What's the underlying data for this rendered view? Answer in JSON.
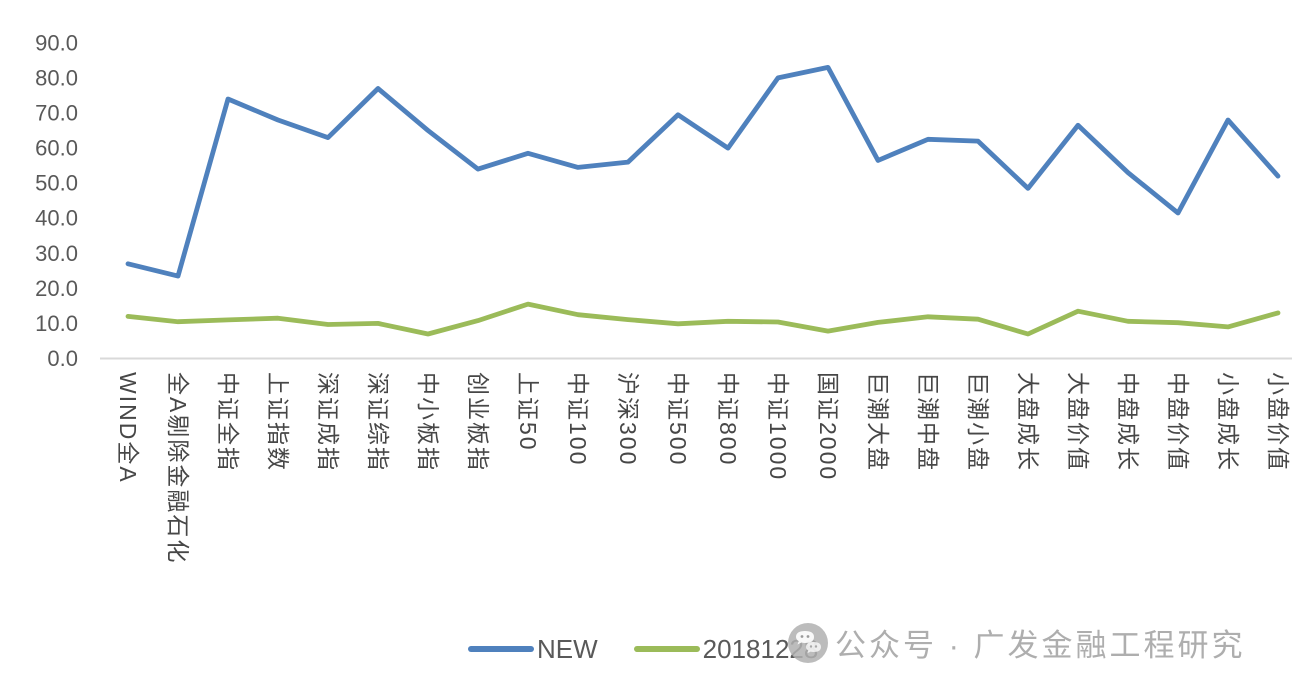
{
  "chart_data": {
    "type": "line",
    "title": "",
    "xlabel": "",
    "ylabel": "",
    "ylim": [
      0,
      90
    ],
    "grid": false,
    "legend_position": "bottom",
    "y_ticks": [
      "0.0",
      "10.0",
      "20.0",
      "30.0",
      "40.0",
      "50.0",
      "60.0",
      "70.0",
      "80.0",
      "90.0"
    ],
    "categories": [
      "WIND全A",
      "全A剔除金融石化",
      "中证全指",
      "上证指数",
      "深证成指",
      "深证综指",
      "中小板指",
      "创业板指",
      "上证50",
      "中证100",
      "沪深300",
      "中证500",
      "中证800",
      "中证1000",
      "国证2000",
      "巨潮大盘",
      "巨潮中盘",
      "巨潮小盘",
      "大盘成长",
      "大盘价值",
      "中盘成长",
      "中盘价值",
      "小盘成长",
      "小盘价值"
    ],
    "series": [
      {
        "name": "NEW",
        "color": "#4F81BD",
        "values": [
          27.0,
          23.5,
          74.0,
          68.0,
          63.0,
          77.0,
          65.0,
          54.0,
          58.5,
          54.5,
          56.0,
          69.5,
          60.0,
          80.0,
          83.0,
          56.5,
          62.5,
          62.0,
          48.5,
          66.5,
          53.0,
          41.5,
          68.0,
          52.0
        ]
      },
      {
        "name": "20181228",
        "color": "#9BBB59",
        "values": [
          12.0,
          10.5,
          11.0,
          11.5,
          9.7,
          10.0,
          7.0,
          10.8,
          15.5,
          12.5,
          11.1,
          9.9,
          10.6,
          10.4,
          7.8,
          10.3,
          11.9,
          11.2,
          7.0,
          13.5,
          10.6,
          10.2,
          9.0,
          13.0
        ]
      }
    ]
  },
  "watermark": {
    "icon": "wechat-logo",
    "text": "公众号 · 广发金融工程研究"
  }
}
